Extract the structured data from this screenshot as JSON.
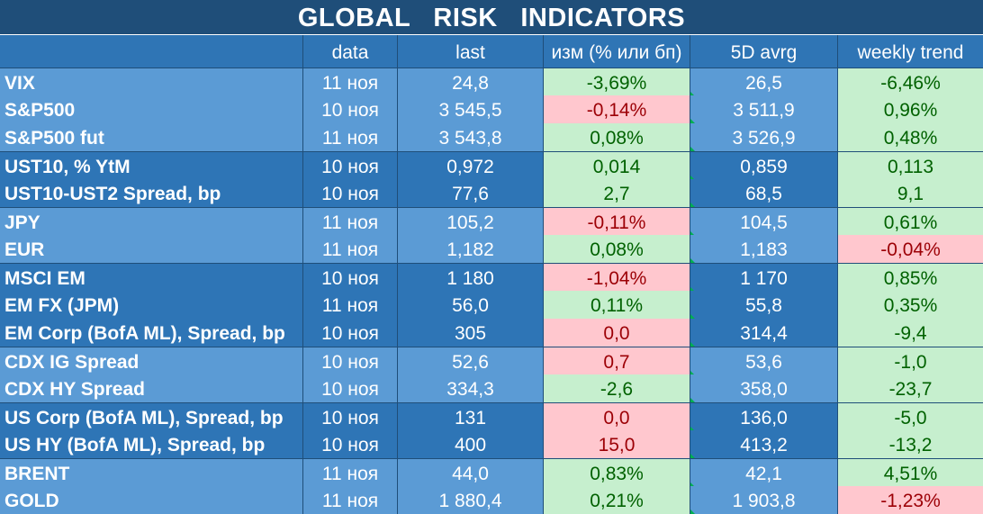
{
  "title": "GLOBAL   RISK   INDICATORS",
  "headers": {
    "name": "",
    "date": "data",
    "last": "last",
    "change": "изм (% или бп)",
    "avg5d": "5D avrg",
    "weekly": "weekly trend"
  },
  "colors": {
    "title_bg": "#1f4e79",
    "header_bg": "#2f75b5",
    "row_light": "#5b9bd5",
    "row_dark": "#2e75b6",
    "positive_bg": "#c6efce",
    "positive_text": "#006100",
    "negative_bg": "#ffc7ce",
    "negative_text": "#9c0006"
  },
  "rows": [
    {
      "name": "VIX",
      "date": "11 ноя",
      "last": "24,8",
      "change": "-3,69%",
      "change_status": "positive",
      "avg5d": "26,5",
      "weekly": "-6,46%",
      "weekly_status": "positive",
      "shade": "light"
    },
    {
      "name": "S&P500",
      "date": "10 ноя",
      "last": "3 545,5",
      "change": "-0,14%",
      "change_status": "negative",
      "avg5d": "3 511,9",
      "weekly": "0,96%",
      "weekly_status": "positive",
      "shade": "light"
    },
    {
      "name": "S&P500 fut",
      "date": "11 ноя",
      "last": "3 543,8",
      "change": "0,08%",
      "change_status": "positive",
      "avg5d": "3 526,9",
      "weekly": "0,48%",
      "weekly_status": "positive",
      "shade": "light"
    },
    {
      "name": "UST10, % YtM",
      "date": "10 ноя",
      "last": "0,972",
      "change": "0,014",
      "change_status": "positive",
      "avg5d": "0,859",
      "weekly": "0,113",
      "weekly_status": "positive",
      "shade": "dark"
    },
    {
      "name": "UST10-UST2 Spread, bp",
      "date": "10 ноя",
      "last": "77,6",
      "change": "2,7",
      "change_status": "positive",
      "avg5d": "68,5",
      "weekly": "9,1",
      "weekly_status": "positive",
      "shade": "dark"
    },
    {
      "name": "JPY",
      "date": "11 ноя",
      "last": "105,2",
      "change": "-0,11%",
      "change_status": "negative",
      "avg5d": "104,5",
      "weekly": "0,61%",
      "weekly_status": "positive",
      "shade": "light"
    },
    {
      "name": "EUR",
      "date": "11 ноя",
      "last": "1,182",
      "change": "0,08%",
      "change_status": "positive",
      "avg5d": "1,183",
      "weekly": "-0,04%",
      "weekly_status": "negative",
      "shade": "light"
    },
    {
      "name": "MSCI EM",
      "date": "10 ноя",
      "last": "1 180",
      "change": "-1,04%",
      "change_status": "negative",
      "avg5d": "1 170",
      "weekly": "0,85%",
      "weekly_status": "positive",
      "shade": "dark"
    },
    {
      "name": "EM FX (JPM)",
      "date": "11 ноя",
      "last": "56,0",
      "change": "0,11%",
      "change_status": "positive",
      "avg5d": "55,8",
      "weekly": "0,35%",
      "weekly_status": "positive",
      "shade": "dark"
    },
    {
      "name": "EM Corp (BofA ML), Spread, bp",
      "date": "10 ноя",
      "last": "305",
      "change": "0,0",
      "change_status": "negative",
      "avg5d": "314,4",
      "weekly": "-9,4",
      "weekly_status": "positive",
      "shade": "dark"
    },
    {
      "name": "CDX IG Spread",
      "date": "10 ноя",
      "last": "52,6",
      "change": "0,7",
      "change_status": "negative",
      "avg5d": "53,6",
      "weekly": "-1,0",
      "weekly_status": "positive",
      "shade": "light"
    },
    {
      "name": "CDX HY Spread",
      "date": "10 ноя",
      "last": "334,3",
      "change": "-2,6",
      "change_status": "positive",
      "avg5d": "358,0",
      "weekly": "-23,7",
      "weekly_status": "positive",
      "shade": "light"
    },
    {
      "name": "US Corp (BofA ML), Spread, bp",
      "date": "10 ноя",
      "last": "131",
      "change": "0,0",
      "change_status": "negative",
      "avg5d": "136,0",
      "weekly": "-5,0",
      "weekly_status": "positive",
      "shade": "dark"
    },
    {
      "name": "US HY (BofA ML), Spread, bp",
      "date": "10 ноя",
      "last": "400",
      "change": "15,0",
      "change_status": "negative",
      "avg5d": "413,2",
      "weekly": "-13,2",
      "weekly_status": "positive",
      "shade": "dark"
    },
    {
      "name": "BRENT",
      "date": "11 ноя",
      "last": "44,0",
      "change": "0,83%",
      "change_status": "positive",
      "avg5d": "42,1",
      "weekly": "4,51%",
      "weekly_status": "positive",
      "shade": "light"
    },
    {
      "name": "GOLD",
      "date": "11 ноя",
      "last": "1 880,4",
      "change": "0,21%",
      "change_status": "positive",
      "avg5d": "1 903,8",
      "weekly": "-1,23%",
      "weekly_status": "negative",
      "shade": "light"
    }
  ]
}
